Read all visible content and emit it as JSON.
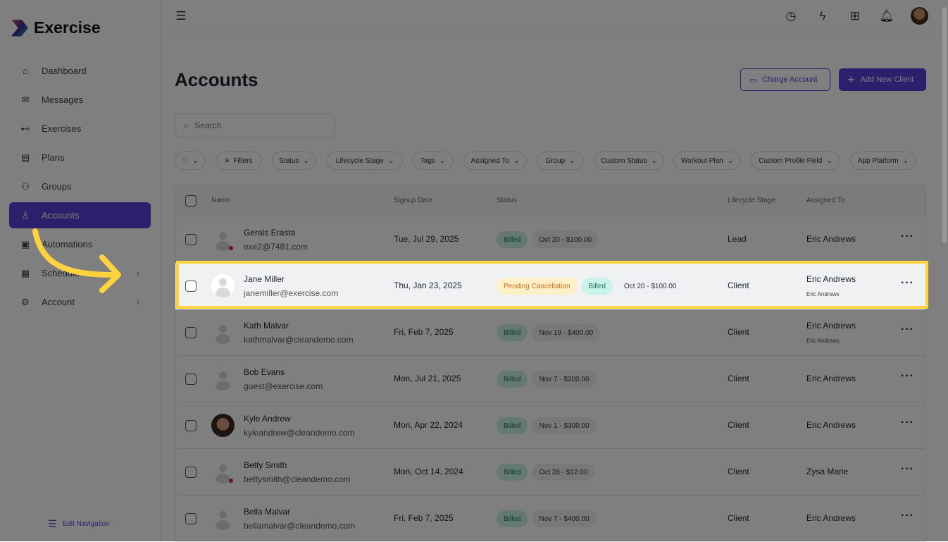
{
  "app": {
    "name": "Exercise"
  },
  "sidebar": {
    "items": [
      {
        "label": "Dashboard",
        "icon": "home-icon"
      },
      {
        "label": "Messages",
        "icon": "mail-icon"
      },
      {
        "label": "Exercises",
        "icon": "dumbbell-icon"
      },
      {
        "label": "Plans",
        "icon": "clipboard-icon"
      },
      {
        "label": "Groups",
        "icon": "users-icon"
      },
      {
        "label": "Accounts",
        "icon": "user-icon",
        "active": true
      },
      {
        "label": "Automations",
        "icon": "robot-icon"
      },
      {
        "label": "Schedule",
        "icon": "calendar-icon",
        "chevron": true
      },
      {
        "label": "Account",
        "icon": "user-gear-icon",
        "chevron": true
      }
    ],
    "edit_nav": "Edit Navigation"
  },
  "header": {
    "title": "Accounts",
    "charge": "Charge Account",
    "add": "Add New Client"
  },
  "search": {
    "placeholder": "Search"
  },
  "filters": [
    "Filters",
    "Status",
    "Lifecycle Stage",
    "Tags",
    "Assigned To",
    "Group",
    "Custom Status",
    "Workout Plan",
    "Custom Profile Field",
    "App Platform"
  ],
  "table": {
    "headers": {
      "name": "Name",
      "signup": "Signup Date",
      "status": "Status",
      "lifecycle": "Lifecycle Stage",
      "assigned": "Assigned To"
    },
    "rows": [
      {
        "name": "Gerals Erasta",
        "email": "exe2@7481.com",
        "date": "Tue, Jul 29, 2025",
        "billed": "Billed",
        "amount": "Oct 20 - $100.00",
        "stage": "Lead",
        "assigned": "Eric Andrews"
      },
      {
        "name": "Jane Miller",
        "email": "janemiller@exercise.com",
        "date": "Thu, Jan 23, 2025",
        "pending": "Pending Cancellation",
        "billed": "Billed",
        "amount": "Oct 20 - $100.00",
        "stage": "Client",
        "assigned": "Eric Andrews",
        "assigned_sub": "Eric Andrews"
      },
      {
        "name": "Kath Malvar",
        "email": "kathmalvar@cleandemo.com",
        "date": "Fri, Feb 7, 2025",
        "billed": "Billed",
        "amount": "Nov 19 - $400.00",
        "stage": "Client",
        "assigned": "Eric Andrews",
        "assigned_sub": "Eric Andrews"
      },
      {
        "name": "Bob Evans",
        "email": "guest@exercise.com",
        "date": "Mon, Jul 21, 2025",
        "billed": "Billed",
        "amount": "Nov 7 - $200.00",
        "stage": "Client",
        "assigned": "Eric Andrews"
      },
      {
        "name": "Kyle Andrew",
        "email": "kyleandrew@cleandemo.com",
        "date": "Mon, Apr 22, 2024",
        "billed": "Billed",
        "amount": "Nov 1 - $300.00",
        "stage": "Client",
        "assigned": "Eric Andrews"
      },
      {
        "name": "Betty Smith",
        "email": "bettysmith@cleandemo.com",
        "date": "Mon, Oct 14, 2024",
        "billed": "Billed",
        "amount": "Oct 28 - $12.00",
        "stage": "Client",
        "assigned": "Zysa Marie"
      },
      {
        "name": "Bella Malvar",
        "email": "bellamalvar@cleandemo.com",
        "date": "Fri, Feb 7, 2025",
        "billed": "Billed",
        "amount": "Nov 7 - $400.00",
        "stage": "Client",
        "assigned": "Eric Andrews"
      }
    ]
  },
  "colors": {
    "accent": "#5b3fd6",
    "highlight": "#ffd33d"
  }
}
